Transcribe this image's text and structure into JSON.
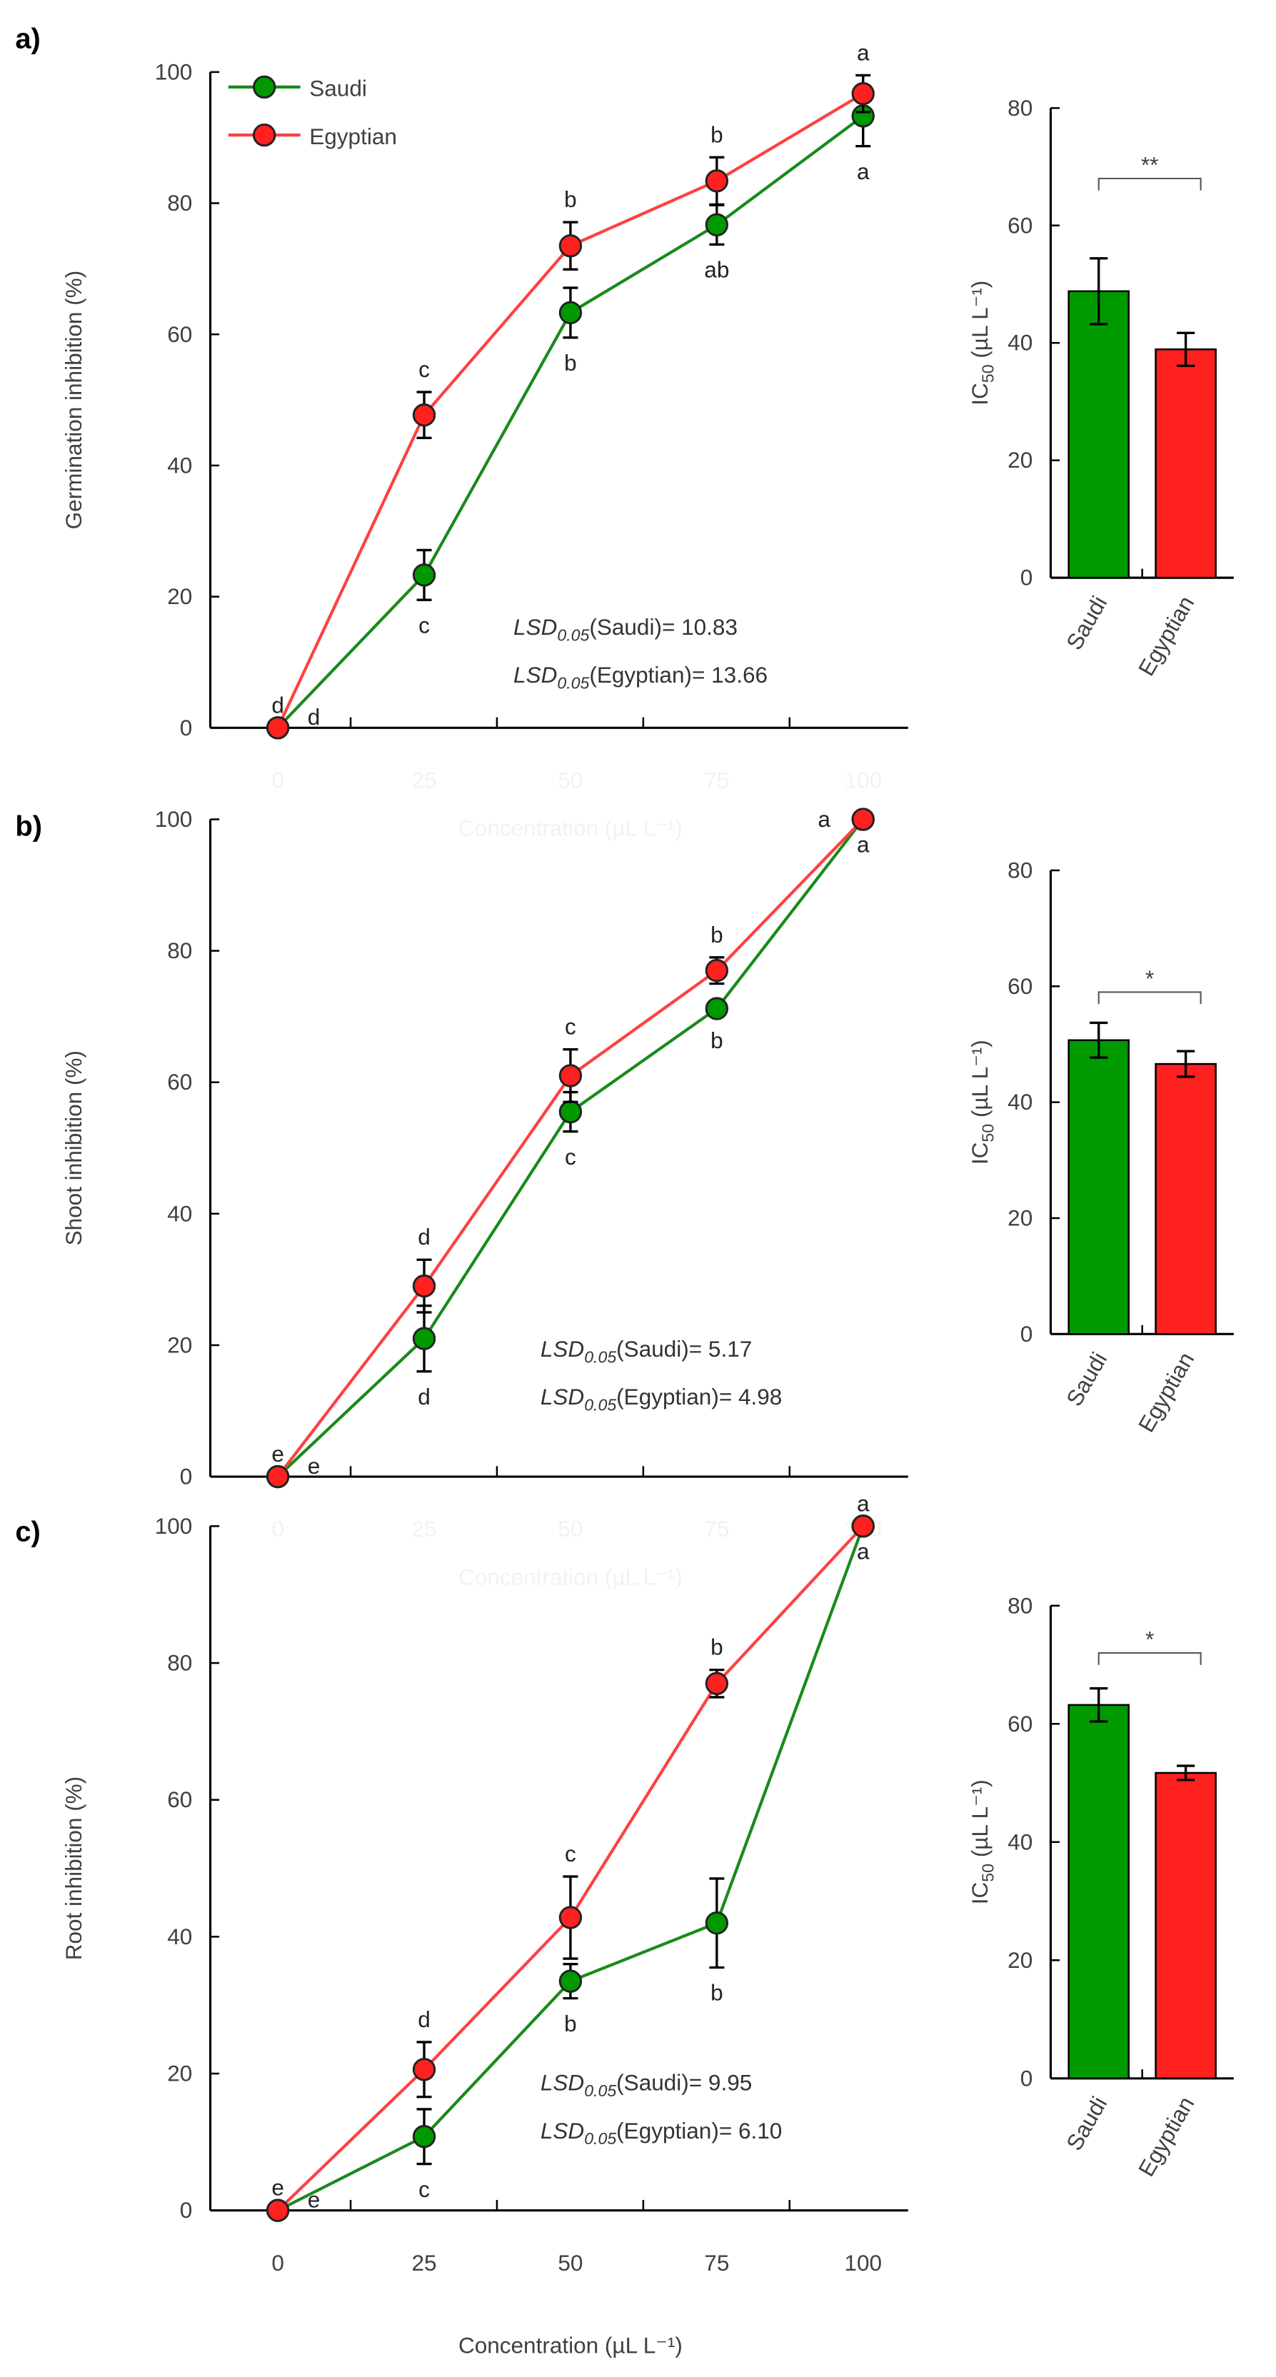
{
  "colors": {
    "saudi": "#009900",
    "saudi_line": "#1a8a1a",
    "egyptian": "#ff2020",
    "egyptian_line": "#ff4040",
    "axis": "#000000"
  },
  "legend": {
    "saudi": "Saudi",
    "egyptian": "Egyptian"
  },
  "chart_data": [
    {
      "panel_label": "a)",
      "type": "line",
      "ylabel": "Germination inhibition (%)",
      "xlabel": "Concentration (µL L⁻¹)",
      "x": [
        "0",
        "25",
        "50",
        "75",
        "100"
      ],
      "ylim": [
        0,
        100
      ],
      "yticks": [
        "0",
        "20",
        "40",
        "60",
        "80",
        "100"
      ],
      "legend_placement": "top-left",
      "series": [
        {
          "name": "Saudi",
          "values": [
            0,
            23.3,
            63.3,
            76.7,
            93.3
          ],
          "errors": [
            0,
            3.8,
            3.8,
            3.0,
            4.6
          ],
          "letters": [
            "d",
            "c",
            "b",
            "ab",
            "a"
          ],
          "letter_pos": [
            "right",
            "below",
            "below",
            "below",
            "below"
          ]
        },
        {
          "name": "Egyptian",
          "values": [
            0,
            47.7,
            73.5,
            83.4,
            96.7
          ],
          "errors": [
            0,
            3.5,
            3.6,
            3.6,
            2.8
          ],
          "letters": [
            "d",
            "c",
            "b",
            "b",
            "a"
          ],
          "letter_pos": [
            "above",
            "above",
            "above",
            "above",
            "above"
          ]
        }
      ],
      "lsd": [
        {
          "prefix": "LSD",
          "sub": "0.05",
          "text": "(Saudi)= 10.83"
        },
        {
          "prefix": "LSD",
          "sub": "0.05",
          "text": "(Egyptian)= 13.66"
        }
      ],
      "bar": {
        "type": "bar",
        "ylabel_main": "IC",
        "ylabel_sub": "50",
        "ylabel_rest": " (µL L⁻¹)",
        "categories": [
          "Saudi",
          "Egyptian"
        ],
        "values": [
          48.8,
          38.9
        ],
        "errors": [
          5.6,
          2.8
        ],
        "ylim": [
          0,
          80
        ],
        "yticks": [
          "0",
          "20",
          "40",
          "60",
          "80"
        ],
        "significance": "**"
      }
    },
    {
      "panel_label": "b)",
      "type": "line",
      "ylabel": "Shoot inhibition (%)",
      "xlabel": "Concentration (µL L⁻¹)",
      "x": [
        "0",
        "25",
        "50",
        "75",
        "100"
      ],
      "ylim": [
        0,
        100
      ],
      "yticks": [
        "0",
        "20",
        "40",
        "60",
        "80",
        "100"
      ],
      "series": [
        {
          "name": "Saudi",
          "values": [
            0,
            21.0,
            55.5,
            71.2,
            100
          ],
          "errors": [
            0,
            5.0,
            3.0,
            1.0,
            0
          ],
          "letters": [
            "e",
            "d",
            "c",
            "b",
            "a"
          ],
          "letter_pos": [
            "right",
            "below",
            "below",
            "below",
            "below"
          ]
        },
        {
          "name": "Egyptian",
          "values": [
            0,
            29.0,
            61.0,
            77.0,
            100
          ],
          "errors": [
            0,
            4.0,
            4.0,
            2.0,
            0
          ],
          "letters": [
            "e",
            "d",
            "c",
            "b",
            "a"
          ],
          "letter_pos": [
            "above",
            "above",
            "above",
            "above",
            "left"
          ]
        }
      ],
      "lsd": [
        {
          "prefix": "LSD",
          "sub": "0.05",
          "text": "(Saudi)= 5.17"
        },
        {
          "prefix": "LSD",
          "sub": "0.05",
          "text": "(Egyptian)= 4.98"
        }
      ],
      "bar": {
        "type": "bar",
        "ylabel_main": "IC",
        "ylabel_sub": "50",
        "ylabel_rest": " (µL L⁻¹)",
        "categories": [
          "Saudi",
          "Egyptian"
        ],
        "values": [
          50.7,
          46.6
        ],
        "errors": [
          3.0,
          2.2
        ],
        "ylim": [
          0,
          80
        ],
        "yticks": [
          "0",
          "20",
          "40",
          "60",
          "80"
        ],
        "significance": "*"
      }
    },
    {
      "panel_label": "c)",
      "type": "line",
      "ylabel": "Root inhibition (%)",
      "xlabel": "Concentration (µL L⁻¹)",
      "x": [
        "0",
        "25",
        "50",
        "75",
        "100"
      ],
      "ylim": [
        0,
        100
      ],
      "yticks": [
        "0",
        "20",
        "40",
        "60",
        "80",
        "100"
      ],
      "series": [
        {
          "name": "Saudi",
          "values": [
            0,
            10.8,
            33.5,
            42.0,
            100
          ],
          "errors": [
            0,
            4.0,
            2.5,
            6.5,
            0
          ],
          "letters": [
            "e",
            "c",
            "b",
            "b",
            "a"
          ],
          "letter_pos": [
            "right",
            "below",
            "below",
            "below",
            "below"
          ]
        },
        {
          "name": "Egyptian",
          "values": [
            0,
            20.6,
            42.8,
            77.0,
            100
          ],
          "errors": [
            0,
            4.0,
            6.0,
            2.0,
            0
          ],
          "letters": [
            "e",
            "d",
            "c",
            "b",
            "a"
          ],
          "letter_pos": [
            "above",
            "above",
            "above",
            "above",
            "above"
          ]
        }
      ],
      "lsd": [
        {
          "prefix": "LSD",
          "sub": "0.05",
          "text": "(Saudi)= 9.95"
        },
        {
          "prefix": "LSD",
          "sub": "0.05",
          "text": "(Egyptian)= 6.10"
        }
      ],
      "bar": {
        "type": "bar",
        "ylabel_main": "IC",
        "ylabel_sub": "50",
        "ylabel_rest": " (µL L⁻¹)",
        "categories": [
          "Saudi",
          "Egyptian"
        ],
        "values": [
          63.2,
          51.7
        ],
        "errors": [
          2.8,
          1.2
        ],
        "ylim": [
          0,
          80
        ],
        "yticks": [
          "0",
          "20",
          "40",
          "60",
          "80"
        ],
        "significance": "*"
      }
    }
  ]
}
